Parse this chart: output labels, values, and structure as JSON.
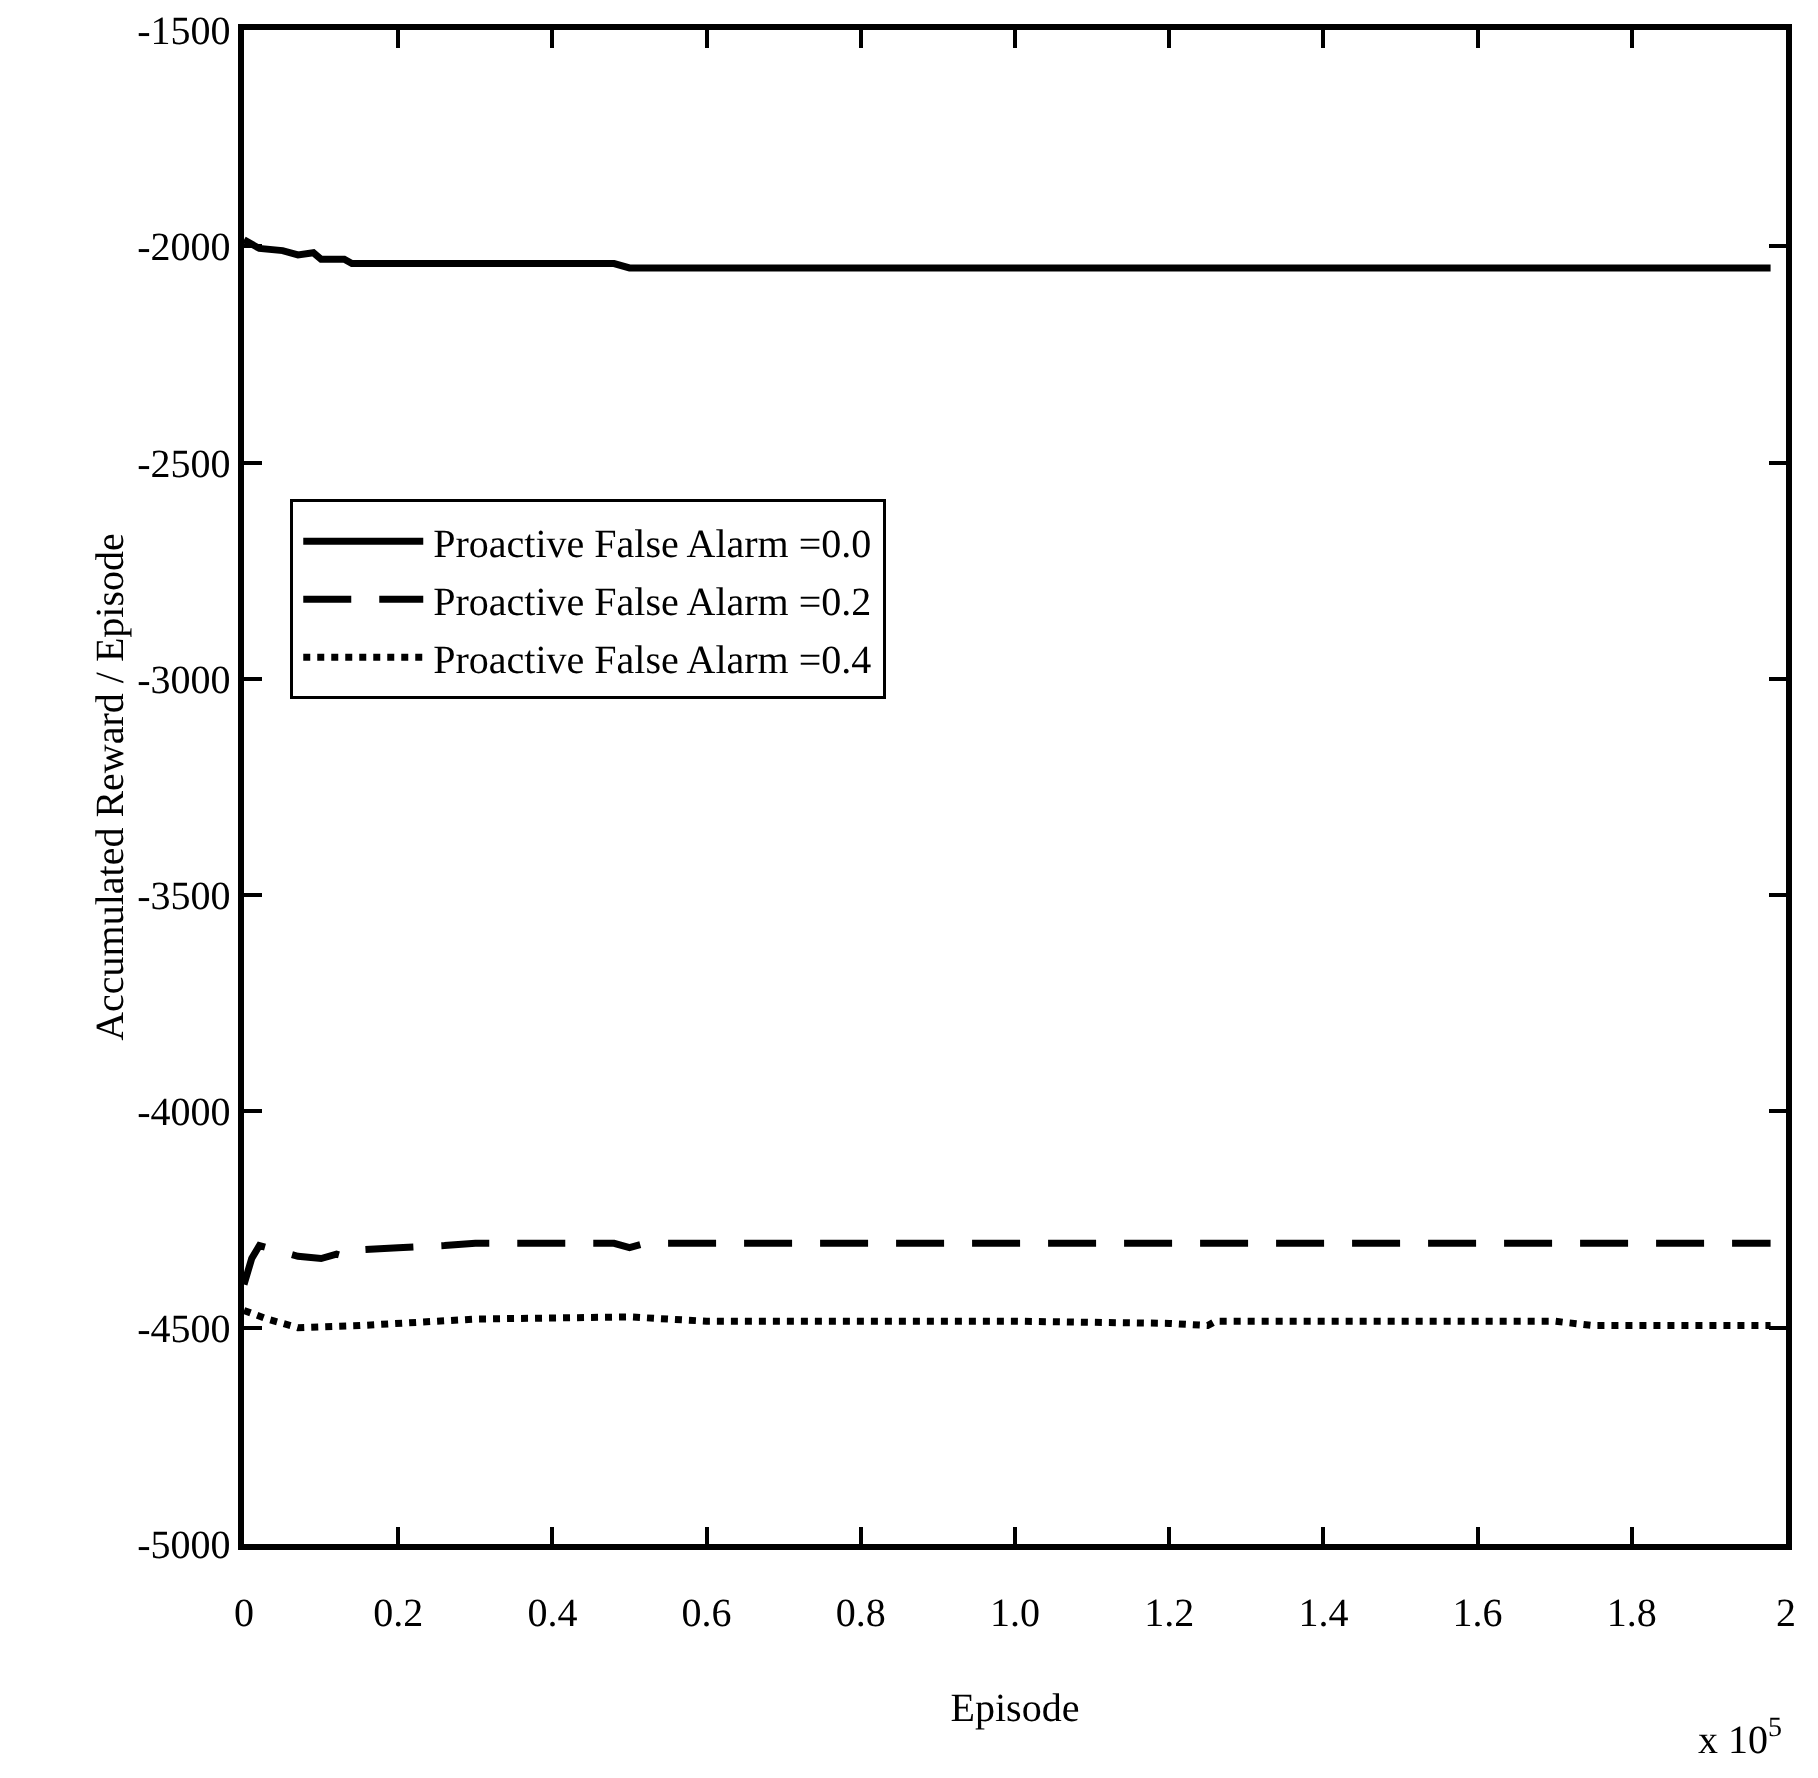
{
  "chart_data": {
    "type": "line",
    "xlabel": "Episode",
    "ylabel": "Accumulated Reward / Episode",
    "annotations": [
      "x 10$^{5}$"
    ],
    "xlim": [
      0,
      2
    ],
    "xticks": [
      0,
      0.2,
      0.4,
      0.6,
      0.8,
      {
        "value": 1,
        "label": "1.0"
      },
      1.2,
      1.4,
      1.6,
      1.8,
      2
    ],
    "ylim": [
      -5000,
      -1500
    ],
    "yticks": [
      -5000,
      -4500,
      -4000,
      -3500,
      -3000,
      -2500,
      -2000,
      -1500
    ],
    "grid": false,
    "legend": "left",
    "marker": "none",
    "series": [
      {
        "name": "Proactive False Alarm =0.0",
        "color": "#000000",
        "line_style": "solid",
        "x": [
          0,
          0.02,
          0.05,
          0.07,
          0.09,
          0.1,
          0.13,
          0.14,
          0.48,
          0.5,
          1.98
        ],
        "values": [
          -1985,
          -2005,
          -2010,
          -2020,
          -2015,
          -2030,
          -2030,
          -2040,
          -2040,
          -2050,
          -2050
        ]
      },
      {
        "name": "Proactive False Alarm =0.2",
        "color": "#000000",
        "line_style": "dashed",
        "x": [
          0,
          0.01,
          0.02,
          0.04,
          0.07,
          0.1,
          0.12,
          0.13,
          0.15,
          0.2,
          0.26,
          0.3,
          0.48,
          0.5,
          0.52,
          1.98
        ],
        "values": [
          -4400,
          -4340,
          -4310,
          -4320,
          -4335,
          -4340,
          -4330,
          -4335,
          -4320,
          -4315,
          -4310,
          -4305,
          -4305,
          -4315,
          -4305,
          -4305
        ]
      },
      {
        "name": "Proactive False Alarm =0.4",
        "color": "#000000",
        "line_style": "dotted",
        "x": [
          0,
          0.03,
          0.07,
          0.15,
          0.3,
          0.5,
          0.6,
          1.0,
          1.2,
          1.25,
          1.26,
          1.7,
          1.75,
          1.98
        ],
        "values": [
          -4460,
          -4480,
          -4500,
          -4495,
          -4480,
          -4475,
          -4485,
          -4485,
          -4490,
          -4495,
          -4485,
          -4485,
          -4495,
          -4495
        ]
      }
    ]
  }
}
